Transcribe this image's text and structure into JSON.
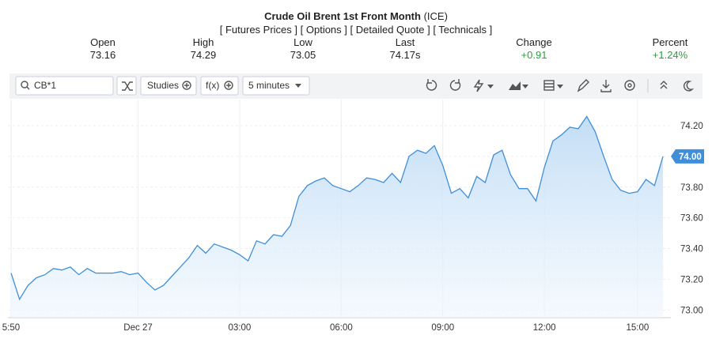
{
  "header": {
    "title": "Crude Oil Brent 1st Front Month",
    "exchange": "(ICE)",
    "links": [
      "[ Futures Prices ]",
      "[ Options ]",
      "[ Detailed Quote ]",
      "[ Technicals ]"
    ],
    "stats": [
      {
        "label": "Open",
        "value": "73.16"
      },
      {
        "label": "High",
        "value": "74.29"
      },
      {
        "label": "Low",
        "value": "73.05"
      },
      {
        "label": "Last",
        "value": "74.17s"
      },
      {
        "label": "Change",
        "value": "+0.91",
        "color": "#2e9e3e"
      },
      {
        "label": "Percent",
        "value": "+1.24%",
        "color": "#2e9e3e"
      }
    ]
  },
  "toolbar": {
    "symbol": "CB*1",
    "buttons": [
      "Studies",
      "f(x)",
      "5 minutes"
    ]
  },
  "chart_data": {
    "type": "area",
    "color": "#3f8fd8",
    "categories": [
      "5:50",
      null,
      null,
      null,
      null,
      null,
      null,
      null,
      null,
      null,
      null,
      null,
      null,
      null,
      null,
      "Dec 27",
      null,
      null,
      null,
      null,
      null,
      null,
      null,
      null,
      null,
      null,
      null,
      "03:00",
      null,
      null,
      null,
      null,
      null,
      null,
      null,
      null,
      null,
      null,
      null,
      "06:00",
      null,
      null,
      null,
      null,
      null,
      null,
      null,
      null,
      null,
      null,
      null,
      "09:00",
      null,
      null,
      null,
      null,
      null,
      null,
      null,
      null,
      null,
      null,
      null,
      "12:00",
      null,
      null,
      null,
      null,
      null,
      null,
      null,
      null,
      null,
      null,
      "15:00",
      null,
      null,
      null
    ],
    "values": [
      73.24,
      73.07,
      73.16,
      73.21,
      73.23,
      73.27,
      73.26,
      73.28,
      73.23,
      73.27,
      73.24,
      73.24,
      73.24,
      73.25,
      73.23,
      73.24,
      73.18,
      73.13,
      73.16,
      73.22,
      73.28,
      73.34,
      73.42,
      73.37,
      73.43,
      73.41,
      73.39,
      73.36,
      73.32,
      73.45,
      73.43,
      73.49,
      73.48,
      73.55,
      73.74,
      73.81,
      73.84,
      73.86,
      73.81,
      73.79,
      73.77,
      73.81,
      73.86,
      73.85,
      73.83,
      73.89,
      73.83,
      74.0,
      74.04,
      74.02,
      74.07,
      73.94,
      73.76,
      73.79,
      73.73,
      73.87,
      73.83,
      74.01,
      74.04,
      73.88,
      73.79,
      73.79,
      73.71,
      73.93,
      74.1,
      74.14,
      74.19,
      74.18,
      74.26,
      74.16,
      74.0,
      73.85,
      73.78,
      73.76,
      73.77,
      73.85,
      73.81,
      74.0
    ],
    "ylim": [
      72.95,
      74.37
    ],
    "yticks": [
      {
        "value": 73.0,
        "label": "73.00"
      },
      {
        "value": 73.2,
        "label": "73.20"
      },
      {
        "value": 73.4,
        "label": "73.40"
      },
      {
        "value": 73.6,
        "label": "73.60"
      },
      {
        "value": 73.8,
        "label": "73.80"
      },
      {
        "value": 74.0,
        "label": "74.00"
      },
      {
        "value": 74.2,
        "label": "74.20"
      }
    ],
    "current_price": {
      "value": 74.0,
      "label": "74.00"
    },
    "grid": true
  }
}
